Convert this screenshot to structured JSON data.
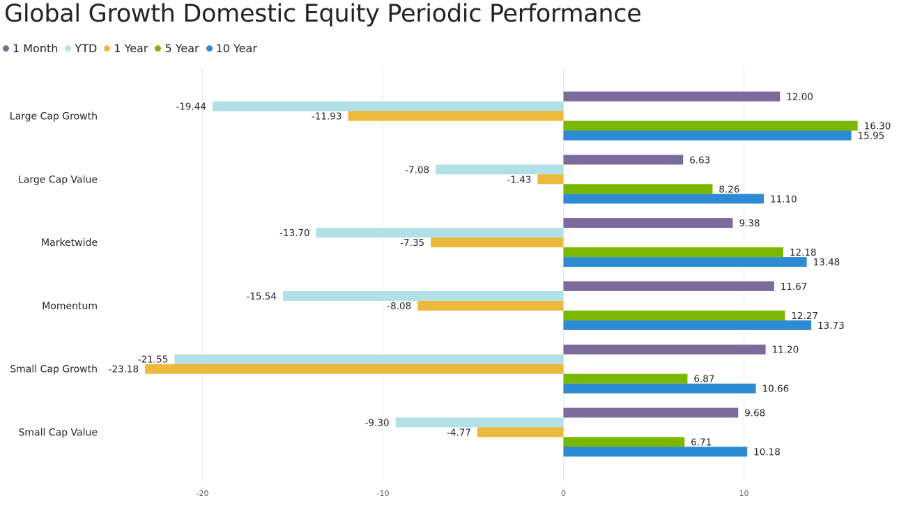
{
  "chart_data": {
    "type": "bar",
    "orientation": "horizontal",
    "title": "Global Growth Domestic Equity Periodic Performance",
    "xlabel": "",
    "ylabel": "",
    "categories": [
      "Large Cap Growth",
      "Large Cap Value",
      "Marketwide",
      "Momentum",
      "Small Cap Growth",
      "Small Cap Value"
    ],
    "series": [
      {
        "name": "1 Month",
        "color": "#7b6a9b",
        "values": [
          12.0,
          6.63,
          9.38,
          11.67,
          11.2,
          9.68
        ],
        "labels": [
          "12.00",
          "6.63",
          "9.38",
          "11.67",
          "11.20",
          "9.68"
        ]
      },
      {
        "name": "YTD",
        "color": "#b2e0e7",
        "values": [
          -19.44,
          -7.08,
          -13.7,
          -15.54,
          -21.55,
          -9.3
        ],
        "labels": [
          "-19.44",
          "-7.08",
          "-13.70",
          "-15.54",
          "-21.55",
          "-9.30"
        ]
      },
      {
        "name": "1 Year",
        "color": "#ecb93c",
        "values": [
          -11.93,
          -1.43,
          -7.35,
          -8.08,
          -23.18,
          -4.77
        ],
        "labels": [
          "-11.93",
          "-1.43",
          "-7.35",
          "-8.08",
          "-23.18",
          "-4.77"
        ]
      },
      {
        "name": "5 Year",
        "color": "#7ab800",
        "values": [
          16.3,
          8.26,
          12.18,
          12.27,
          6.87,
          6.71
        ],
        "labels": [
          "16.30",
          "8.26",
          "12.18",
          "12.27",
          "6.87",
          "6.71"
        ]
      },
      {
        "name": "10 Year",
        "color": "#2d8bd4",
        "values": [
          15.95,
          11.1,
          13.48,
          13.73,
          10.66,
          10.18
        ],
        "labels": [
          "15.95",
          "11.10",
          "13.48",
          "13.73",
          "10.66",
          "10.18"
        ]
      }
    ],
    "xlim": [
      -25,
      18
    ],
    "xticks": [
      -20,
      -10,
      0,
      10
    ],
    "xtick_labels": [
      "-20",
      "-10",
      "0",
      "10"
    ],
    "grid": true,
    "legend_position": "top-left"
  }
}
